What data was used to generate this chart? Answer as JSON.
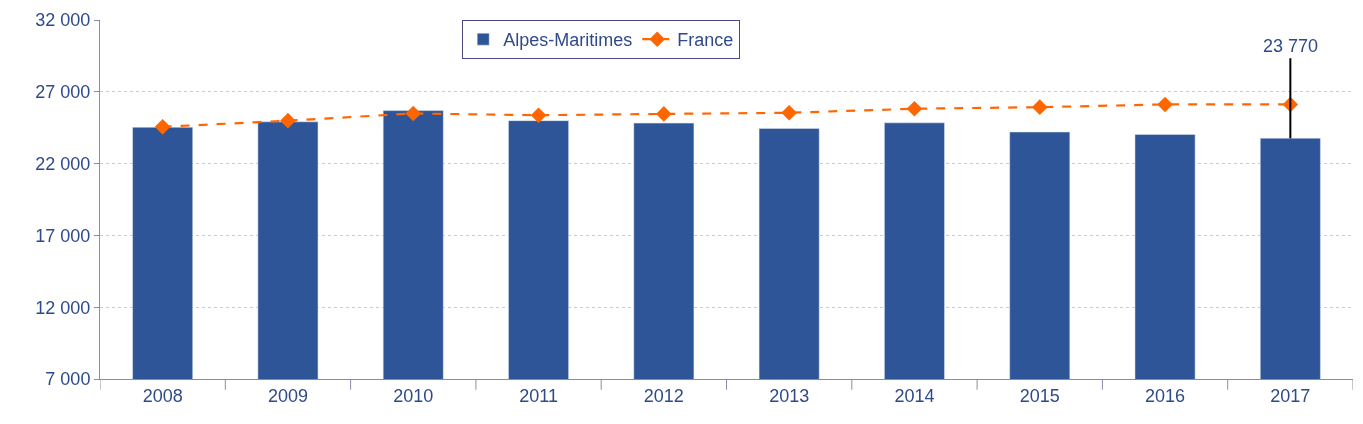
{
  "chart_data": {
    "type": "bar",
    "categories": [
      "2008",
      "2009",
      "2010",
      "2011",
      "2012",
      "2013",
      "2014",
      "2015",
      "2016",
      "2017"
    ],
    "series": [
      {
        "name": "Alpes-Maritimes",
        "color": "#2e5597",
        "values": [
          24530,
          24910,
          25690,
          24990,
          24820,
          24450,
          24840,
          24200,
          24030,
          23770
        ]
      },
      {
        "name": "France",
        "type": "line",
        "color": "#ff6600",
        "marker": "diamond",
        "line_style": "dashed",
        "values": [
          24560,
          24990,
          25490,
          25370,
          25460,
          25540,
          25820,
          25930,
          26120,
          26120
        ]
      }
    ],
    "annotations": [
      {
        "text": "23 770",
        "x": "2017",
        "y": 23770
      }
    ],
    "ylim": [
      7000,
      32000
    ],
    "yticks": [
      {
        "value": 7000,
        "label": "7 000"
      },
      {
        "value": 12000,
        "label": "12 000"
      },
      {
        "value": 17000,
        "label": "17 000"
      },
      {
        "value": 22000,
        "label": "22 000"
      },
      {
        "value": 27000,
        "label": "27 000"
      },
      {
        "value": 32000,
        "label": "32 000"
      }
    ],
    "grid": "y",
    "legend": "top"
  }
}
